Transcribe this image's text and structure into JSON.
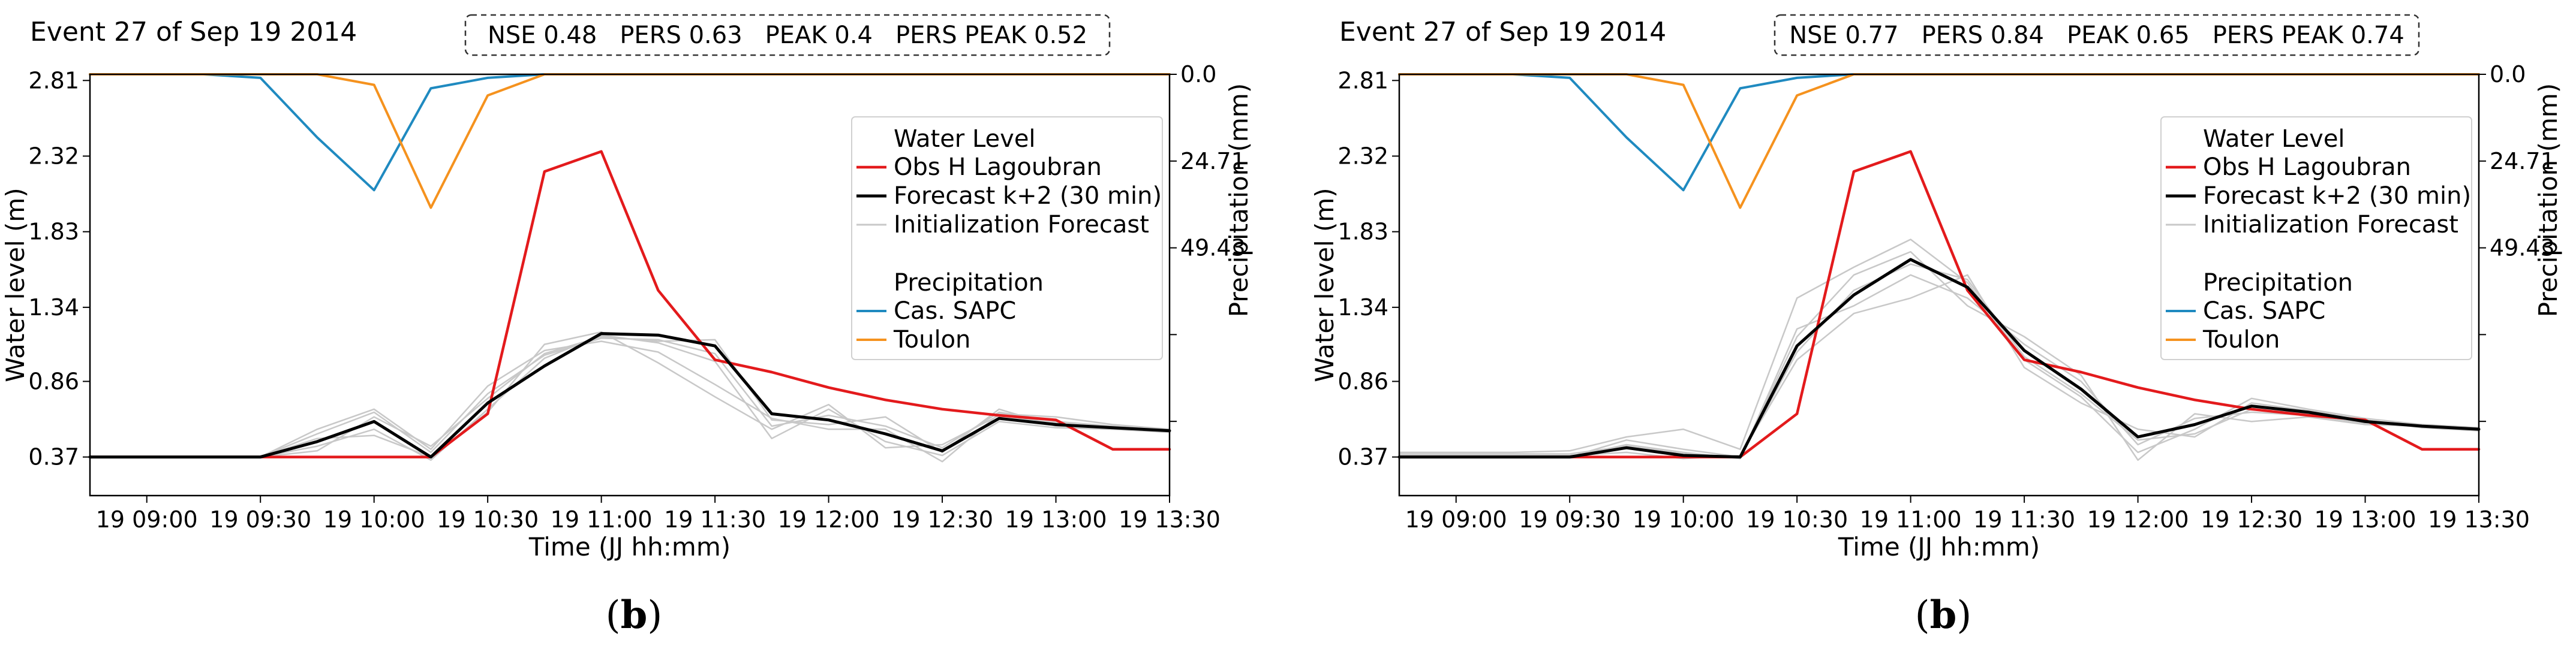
{
  "x_tick_labels": [
    "19 09:00",
    "19 09:30",
    "19 10:00",
    "19 10:30",
    "19 11:00",
    "19 11:30",
    "19 12:00",
    "19 12:30",
    "19 13:00",
    "19 13:30"
  ],
  "chart_data": [
    {
      "type": "line",
      "panel_label": "b",
      "title": "Event 27 of Sep 19 2014",
      "metrics": [
        {
          "label": "NSE",
          "value": "0.48"
        },
        {
          "label": "PERS",
          "value": "0.63"
        },
        {
          "label": "PEAK",
          "value": "0.4"
        },
        {
          "label": "PERS PEAK",
          "value": "0.52"
        }
      ],
      "xlabel": "Time (JJ hh:mm)",
      "ylabel": "Water level (m)",
      "y2label": "Precipitation (mm)",
      "x": [
        "08:45",
        "09:00",
        "09:15",
        "09:30",
        "09:45",
        "10:00",
        "10:15",
        "10:30",
        "10:45",
        "11:00",
        "11:15",
        "11:30",
        "11:45",
        "12:00",
        "12:15",
        "12:30",
        "12:45",
        "13:00",
        "13:15",
        "13:30"
      ],
      "ylim": [
        0.12,
        2.85
      ],
      "y_ticks": [
        "0.37",
        "0.86",
        "1.34",
        "1.83",
        "2.32",
        "2.81"
      ],
      "y2lim": [
        0,
        120
      ],
      "y2_ticks": [
        "0.0",
        "24.71",
        "49.43"
      ],
      "legend": {
        "water_title": "Water Level",
        "precip_title": "Precipitation",
        "entries": [
          "Obs H Lagoubran",
          "Forecast k+2 (30 min)",
          "Initialization Forecast",
          "Cas. SAPC",
          "Toulon"
        ]
      },
      "colors": {
        "obs": "#e31a1c",
        "forecast": "#000000",
        "init": "#c8c8c8",
        "sapc": "#1f8ac0",
        "toulon": "#f5921e"
      },
      "series": [
        {
          "name": "Obs H Lagoubran",
          "values": [
            0.37,
            0.37,
            0.37,
            0.37,
            0.37,
            0.37,
            0.37,
            0.65,
            2.22,
            2.35,
            1.45,
            1.0,
            0.92,
            0.82,
            0.74,
            0.68,
            0.64,
            0.61,
            0.42,
            0.42
          ]
        },
        {
          "name": "Forecast k+2 (30 min)",
          "values": [
            0.37,
            0.37,
            0.37,
            0.37,
            0.47,
            0.6,
            0.37,
            0.72,
            0.96,
            1.17,
            1.16,
            1.09,
            0.65,
            0.61,
            0.52,
            0.41,
            0.62,
            0.58,
            0.56,
            0.54
          ]
        },
        {
          "name": "Cas. SAPC",
          "values": [
            0,
            0,
            0,
            1,
            18,
            33,
            4,
            1,
            0,
            0,
            0,
            0,
            0,
            0,
            0,
            0,
            0,
            0,
            0,
            0
          ]
        },
        {
          "name": "Toulon",
          "values": [
            0,
            0,
            0,
            0,
            0,
            3,
            38,
            6,
            0,
            0,
            0,
            0,
            0,
            0,
            0,
            0,
            0,
            0,
            0,
            0
          ]
        }
      ],
      "init_series": [
        {
          "name": "Initialization Forecast",
          "values": [
            0.37,
            0.37,
            0.37,
            0.37,
            0.52,
            0.66,
            0.4,
            0.78,
            1.03,
            1.14,
            1.13,
            1.04,
            0.57,
            0.64,
            0.57,
            0.43,
            0.66,
            0.6,
            0.57,
            0.54
          ]
        },
        {
          "name": "Initialization Forecast",
          "values": [
            0.37,
            0.37,
            0.37,
            0.37,
            0.44,
            0.55,
            0.35,
            0.68,
            1.01,
            1.16,
            1.11,
            0.99,
            0.49,
            0.68,
            0.47,
            0.38,
            0.6,
            0.56,
            0.55,
            0.53
          ]
        },
        {
          "name": "Initialization Forecast",
          "values": [
            0.37,
            0.37,
            0.37,
            0.37,
            0.55,
            0.68,
            0.42,
            0.83,
            1.06,
            1.12,
            1.05,
            0.84,
            0.62,
            0.55,
            0.55,
            0.34,
            0.65,
            0.63,
            0.58,
            0.55
          ]
        },
        {
          "name": "Initialization Forecast",
          "values": [
            0.37,
            0.37,
            0.37,
            0.37,
            0.49,
            0.51,
            0.37,
            0.66,
            1.1,
            1.18,
            0.98,
            0.76,
            0.55,
            0.71,
            0.43,
            0.45,
            0.64,
            0.59,
            0.55,
            0.54
          ]
        },
        {
          "name": "Initialization Forecast",
          "values": [
            0.37,
            0.37,
            0.37,
            0.37,
            0.41,
            0.63,
            0.44,
            0.75,
            1.04,
            1.15,
            1.12,
            1.13,
            0.61,
            0.58,
            0.63,
            0.4,
            0.68,
            0.57,
            0.56,
            0.53
          ]
        }
      ]
    },
    {
      "type": "line",
      "panel_label": "b",
      "title": "Event 27 of Sep 19 2014",
      "metrics": [
        {
          "label": "NSE",
          "value": "0.77"
        },
        {
          "label": "PERS",
          "value": "0.84"
        },
        {
          "label": "PEAK",
          "value": "0.65"
        },
        {
          "label": "PERS PEAK",
          "value": "0.74"
        }
      ],
      "xlabel": "Time (JJ hh:mm)",
      "ylabel": "Water level (m)",
      "y2label": "Precipitation (mm)",
      "x": [
        "08:45",
        "09:00",
        "09:15",
        "09:30",
        "09:45",
        "10:00",
        "10:15",
        "10:30",
        "10:45",
        "11:00",
        "11:15",
        "11:30",
        "11:45",
        "12:00",
        "12:15",
        "12:30",
        "12:45",
        "13:00",
        "13:15",
        "13:30"
      ],
      "ylim": [
        0.12,
        2.85
      ],
      "y_ticks": [
        "0.37",
        "0.86",
        "1.34",
        "1.83",
        "2.32",
        "2.81"
      ],
      "y2lim": [
        0,
        120
      ],
      "y2_ticks": [
        "0.0",
        "24.71",
        "49.43"
      ],
      "legend": {
        "water_title": "Water Level",
        "precip_title": "Precipitation",
        "entries": [
          "Obs H Lagoubran",
          "Forecast k+2 (30 min)",
          "Initialization Forecast",
          "Cas. SAPC",
          "Toulon"
        ]
      },
      "colors": {
        "obs": "#e31a1c",
        "forecast": "#000000",
        "init": "#c8c8c8",
        "sapc": "#1f8ac0",
        "toulon": "#f5921e"
      },
      "series": [
        {
          "name": "Obs H Lagoubran",
          "values": [
            0.37,
            0.37,
            0.37,
            0.37,
            0.37,
            0.37,
            0.37,
            0.65,
            2.22,
            2.35,
            1.45,
            1.0,
            0.92,
            0.82,
            0.74,
            0.68,
            0.64,
            0.61,
            0.42,
            0.42
          ]
        },
        {
          "name": "Forecast k+2 (30 min)",
          "values": [
            0.37,
            0.37,
            0.37,
            0.37,
            0.43,
            0.38,
            0.37,
            1.09,
            1.42,
            1.65,
            1.47,
            1.06,
            0.81,
            0.5,
            0.58,
            0.7,
            0.66,
            0.6,
            0.57,
            0.55
          ]
        },
        {
          "name": "Cas. SAPC",
          "values": [
            0,
            0,
            0,
            1,
            18,
            33,
            4,
            1,
            0,
            0,
            0,
            0,
            0,
            0,
            0,
            0,
            0,
            0,
            0,
            0
          ]
        },
        {
          "name": "Toulon",
          "values": [
            0,
            0,
            0,
            0,
            0,
            3,
            38,
            6,
            0,
            0,
            0,
            0,
            0,
            0,
            0,
            0,
            0,
            0,
            0,
            0
          ]
        }
      ],
      "init_series": [
        {
          "name": "Initialization Forecast",
          "values": [
            0.4,
            0.4,
            0.4,
            0.41,
            0.5,
            0.55,
            0.42,
            1.4,
            1.6,
            1.78,
            1.5,
            1.0,
            0.76,
            0.4,
            0.55,
            0.75,
            0.68,
            0.62,
            0.58,
            0.56
          ]
        },
        {
          "name": "Initialization Forecast",
          "values": [
            0.37,
            0.37,
            0.37,
            0.37,
            0.45,
            0.4,
            0.36,
            1.2,
            1.35,
            1.55,
            1.4,
            1.1,
            0.86,
            0.45,
            0.62,
            0.66,
            0.64,
            0.59,
            0.57,
            0.55
          ]
        },
        {
          "name": "Initialization Forecast",
          "values": [
            0.38,
            0.38,
            0.38,
            0.38,
            0.4,
            0.36,
            0.38,
            1.0,
            1.3,
            1.4,
            1.55,
            0.95,
            0.72,
            0.55,
            0.5,
            0.72,
            0.67,
            0.61,
            0.56,
            0.54
          ]
        },
        {
          "name": "Initialization Forecast",
          "values": [
            0.37,
            0.37,
            0.37,
            0.37,
            0.48,
            0.42,
            0.37,
            1.15,
            1.55,
            1.7,
            1.35,
            1.15,
            0.9,
            0.35,
            0.65,
            0.6,
            0.63,
            0.58,
            0.57,
            0.55
          ]
        },
        {
          "name": "Initialization Forecast",
          "values": [
            0.39,
            0.39,
            0.39,
            0.39,
            0.44,
            0.39,
            0.37,
            1.05,
            1.45,
            1.62,
            1.52,
            1.02,
            0.78,
            0.48,
            0.52,
            0.68,
            0.65,
            0.6,
            0.58,
            0.56
          ]
        }
      ]
    }
  ]
}
